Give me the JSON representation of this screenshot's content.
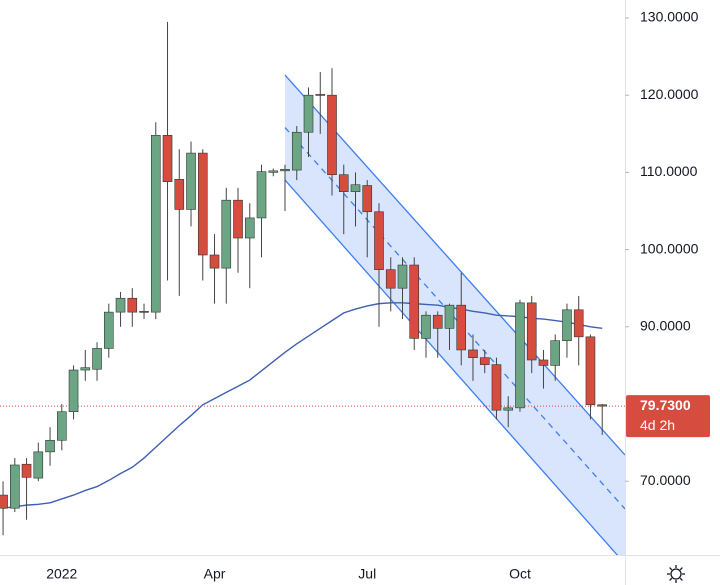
{
  "chart_data": {
    "type": "candlestick",
    "categories": [
      null,
      null,
      null,
      null,
      null,
      "2022",
      null,
      null,
      null,
      null,
      null,
      null,
      null,
      null,
      null,
      null,
      null,
      null,
      "Apr",
      null,
      null,
      null,
      null,
      null,
      null,
      null,
      null,
      null,
      null,
      null,
      null,
      "Jul",
      null,
      null,
      null,
      null,
      null,
      null,
      null,
      null,
      null,
      null,
      null,
      null,
      "Oct",
      null,
      null,
      null,
      null,
      null,
      null,
      null
    ],
    "open": [
      68.2,
      66.5,
      72.2,
      70.4,
      73.8,
      75.3,
      79.0,
      84.4,
      84.5,
      87.2,
      91.9,
      93.7,
      92.0,
      91.9,
      114.8,
      109.1,
      105.2,
      112.5,
      99.3,
      97.6,
      106.4,
      101.5,
      104.1,
      110.0,
      110.2,
      110.3,
      115.2,
      120.1,
      120.0,
      109.7,
      107.5,
      108.3,
      104.9,
      97.4,
      95.0,
      98.0,
      88.5,
      91.5,
      89.8,
      92.8,
      87.0,
      86.0,
      85.1,
      79.2,
      79.5,
      93.1,
      85.7,
      85.0,
      88.2,
      92.2,
      88.7,
      79.9
    ],
    "high": [
      70.0,
      73.0,
      73.0,
      75.0,
      77.0,
      80.0,
      85.0,
      87.0,
      88.0,
      93.0,
      94.5,
      95.0,
      93.0,
      116.5,
      129.5,
      113.0,
      114.0,
      113.0,
      102.0,
      108.0,
      108.0,
      106.0,
      111.0,
      110.5,
      111.0,
      116.0,
      121.0,
      123.0,
      123.5,
      111.0,
      110.0,
      109.0,
      106.0,
      99.0,
      99.0,
      99.0,
      92.0,
      92.0,
      93.0,
      97.0,
      89.0,
      87.0,
      86.0,
      81.0,
      93.5,
      94.0,
      87.0,
      89.0,
      93.0,
      94.0,
      89.0,
      80.0
    ],
    "low": [
      63.0,
      66.0,
      65.0,
      70.0,
      72.0,
      74.0,
      78.0,
      83.0,
      83.0,
      86.0,
      90.0,
      90.0,
      91.0,
      91.0,
      96.0,
      94.0,
      103.0,
      96.0,
      93.0,
      93.0,
      97.0,
      95.0,
      99.0,
      109.5,
      105.0,
      109.0,
      112.0,
      115.0,
      107.0,
      102.0,
      103.0,
      99.0,
      90.0,
      92.0,
      91.0,
      87.0,
      86.0,
      86.0,
      87.0,
      85.0,
      83.0,
      84.0,
      78.0,
      77.0,
      79.0,
      84.0,
      82.0,
      83.0,
      86.0,
      85.0,
      78.0,
      76.0
    ],
    "close": [
      66.5,
      72.1,
      70.5,
      73.8,
      75.3,
      79.0,
      84.4,
      84.7,
      87.2,
      91.9,
      93.7,
      91.9,
      91.9,
      114.8,
      108.8,
      105.2,
      112.5,
      99.3,
      97.6,
      106.4,
      101.5,
      104.1,
      110.1,
      110.2,
      110.4,
      115.2,
      120.0,
      120.0,
      109.7,
      107.5,
      108.4,
      104.9,
      97.4,
      95.0,
      98.0,
      88.5,
      91.5,
      89.8,
      92.8,
      87.0,
      86.0,
      85.1,
      79.2,
      79.5,
      93.1,
      85.7,
      85.0,
      88.2,
      92.2,
      88.7,
      79.9,
      79.73
    ],
    "up_color": "#6ba583",
    "down_color": "#d64d3f",
    "moving_average": {
      "color": "#3f5fb5",
      "values": [
        66.5,
        66.7,
        66.9,
        67.0,
        67.2,
        67.7,
        68.2,
        68.8,
        69.3,
        70.1,
        71.0,
        71.8,
        73.0,
        74.4,
        75.8,
        77.2,
        78.5,
        79.9,
        80.7,
        81.5,
        82.3,
        83.1,
        84.3,
        85.5,
        86.7,
        87.8,
        88.8,
        89.8,
        90.8,
        91.8,
        92.3,
        92.7,
        93.0,
        93.1,
        93.1,
        93.0,
        92.9,
        92.8,
        92.5,
        92.3,
        92.0,
        91.8,
        91.5,
        91.4,
        91.3,
        91.1,
        91.0,
        90.8,
        90.6,
        90.3,
        90.0,
        89.8
      ]
    },
    "channel": {
      "color": "#3d7ef0",
      "x": [
        24,
        52.94
      ],
      "upper": [
        122.6,
        73.4
      ],
      "middle": [
        115.8,
        66.4
      ],
      "lower": [
        109.0,
        59.3
      ]
    },
    "last_price": {
      "value": 79.73,
      "label": "79.7300"
    },
    "countdown": "4d 2h",
    "xlim": [
      -0.26,
      52.94
    ],
    "ylim": [
      60.44,
      132.33
    ],
    "yticks": [
      {
        "value": 70,
        "label": "70.0000"
      },
      {
        "value": 90,
        "label": "90.0000"
      },
      {
        "value": 100,
        "label": "100.0000"
      },
      {
        "value": 110,
        "label": "110.0000"
      },
      {
        "value": 120,
        "label": "120.0000"
      },
      {
        "value": 130,
        "label": "130.0000"
      }
    ]
  }
}
